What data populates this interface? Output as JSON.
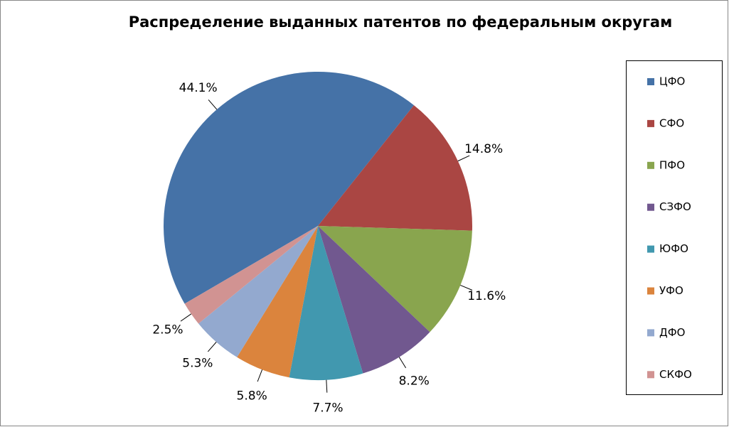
{
  "chart_data": {
    "type": "pie",
    "title": "Распределение выданных патентов по федеральным округам",
    "categories": [
      "ЦФО",
      "СФО",
      "ПФО",
      "СЗФО",
      "ЮФО",
      "УФО",
      "ДФО",
      "СКФО"
    ],
    "values": [
      44.1,
      14.8,
      11.6,
      8.2,
      7.7,
      5.8,
      5.3,
      2.5
    ],
    "value_labels": [
      "44.1%",
      "14.8%",
      "11.6%",
      "8.2%",
      "7.7%",
      "5.8%",
      "5.3%",
      "2.5%"
    ],
    "colors": [
      "#4572A7",
      "#AA4643",
      "#89A54E",
      "#71588F",
      "#4198AF",
      "#DB843D",
      "#93A9CF",
      "#D19392"
    ],
    "legend": "right"
  }
}
